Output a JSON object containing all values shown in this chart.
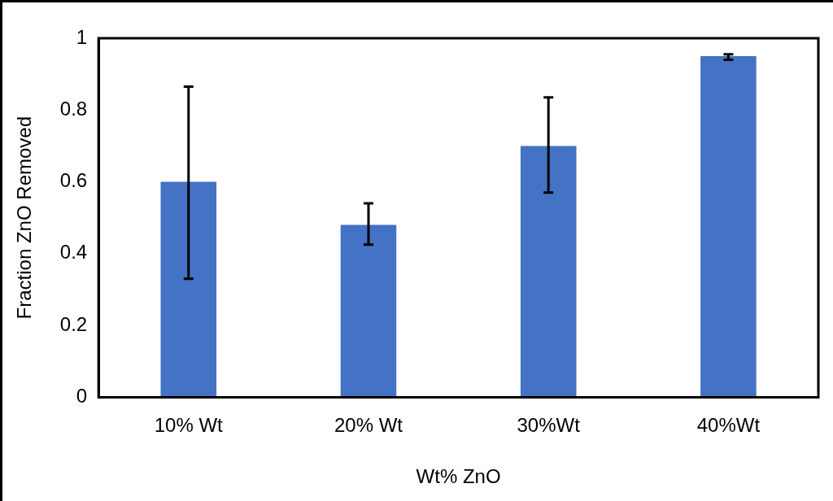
{
  "chart_data": {
    "type": "bar",
    "xlabel": "Wt% ZnO",
    "ylabel": "Fraction ZnO Removed",
    "categories": [
      "10% Wt",
      "20% Wt",
      "30%Wt",
      "40%Wt"
    ],
    "values": [
      0.6,
      0.48,
      0.7,
      0.95
    ],
    "errors": [
      [
        0.33,
        0.865
      ],
      [
        0.425,
        0.54
      ],
      [
        0.57,
        0.835
      ],
      [
        0.94,
        0.955
      ]
    ],
    "color": "#4472c4",
    "ylim": [
      0,
      1
    ],
    "yticks": [
      0,
      0.2,
      0.4,
      0.6,
      0.8,
      1
    ],
    "grid": false,
    "legend": false
  }
}
